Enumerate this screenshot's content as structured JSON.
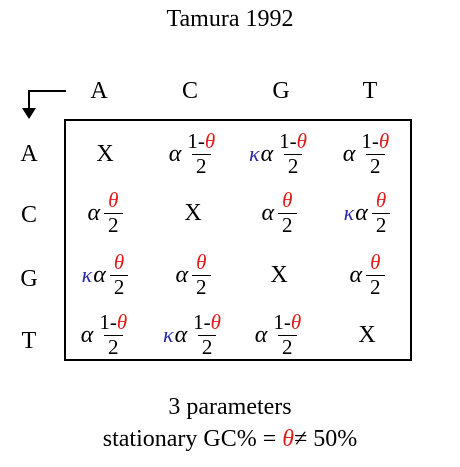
{
  "title": "Tamura 1992",
  "columns": [
    "A",
    "C",
    "G",
    "T"
  ],
  "rows": [
    "A",
    "C",
    "G",
    "T"
  ],
  "symbols": {
    "diag": "X",
    "kappa": "κ",
    "alpha": "α",
    "theta": "θ",
    "one_minus": "1-",
    "den": "2"
  },
  "colors": {
    "kappa": "#2a2aa8",
    "theta": "#e21b1b",
    "text": "#000000"
  },
  "cells": [
    [
      "diag",
      "one_minus_theta",
      "kappa_one_minus_theta",
      "one_minus_theta"
    ],
    [
      "theta",
      "diag",
      "theta",
      "kappa_theta"
    ],
    [
      "kappa_theta",
      "theta",
      "diag",
      "theta"
    ],
    [
      "one_minus_theta",
      "kappa_one_minus_theta",
      "one_minus_theta",
      "diag"
    ]
  ],
  "footer": {
    "line1": "3 parameters",
    "line2_prefix": "stationary GC% = ",
    "line2_symbol": "θ",
    "line2_suffix": "≠ 50%"
  }
}
